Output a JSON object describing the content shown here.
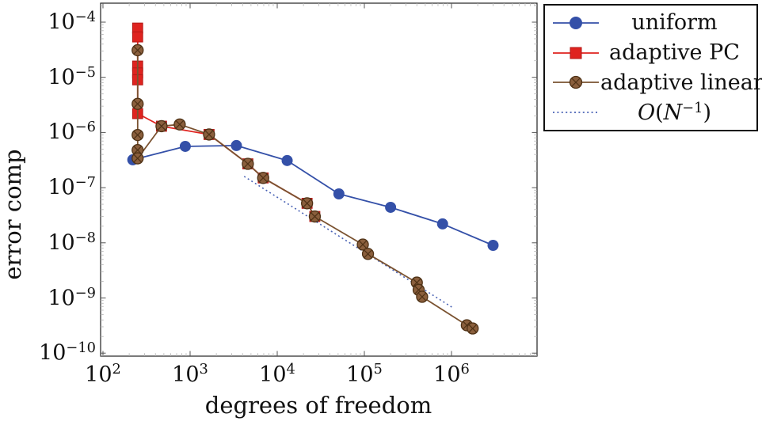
{
  "chart_data": {
    "type": "line",
    "title": "",
    "xlabel": "degrees of freedom",
    "ylabel": "error comp",
    "xscale": "log",
    "yscale": "log",
    "xlim": [
      93,
      9600000
    ],
    "ylim": [
      8.8e-11,
      0.00022
    ],
    "x_tick_exponents": [
      2,
      3,
      4,
      5,
      6
    ],
    "y_tick_exponents": [
      -4,
      -5,
      -6,
      -7,
      -8,
      -9,
      -10
    ],
    "tick_mantissa": "10",
    "grid": false,
    "legend_position": "outside top-right",
    "series": [
      {
        "name": "uniform",
        "marker": "circle",
        "color": "#3450a8",
        "points": [
          [
            220,
            3.2e-07
          ],
          [
            880,
            5.6e-07
          ],
          [
            3400,
            5.8e-07
          ],
          [
            13000,
            3.1e-07
          ],
          [
            51000,
            7.7e-08
          ],
          [
            200000,
            4.4e-08
          ],
          [
            790000,
            2.2e-08
          ],
          [
            3000000,
            9e-09
          ]
        ]
      },
      {
        "name": "adaptive PC",
        "marker": "square",
        "color": "#df231f",
        "points": [
          [
            250,
            7.8e-05
          ],
          [
            250,
            5.4e-05
          ],
          [
            250,
            1.6e-05
          ],
          [
            250,
            1.2e-05
          ],
          [
            250,
            9e-06
          ],
          [
            250,
            2.2e-06
          ],
          [
            470,
            1.3e-06
          ],
          [
            1650,
            9.2e-07
          ],
          [
            4600,
            2.7e-07
          ],
          [
            6900,
            1.5e-07
          ],
          [
            22000,
            5.2e-08
          ],
          [
            27000,
            3e-08
          ]
        ]
      },
      {
        "name": "adaptive linear",
        "marker": "crossed-circle",
        "color": "#7a5230",
        "points": [
          [
            250,
            3.1e-05
          ],
          [
            250,
            3.3e-06
          ],
          [
            250,
            9e-07
          ],
          [
            250,
            4.8e-07
          ],
          [
            250,
            3.4e-07
          ],
          [
            470,
            1.3e-06
          ],
          [
            760,
            1.4e-06
          ],
          [
            1650,
            9.2e-07
          ],
          [
            4600,
            2.7e-07
          ],
          [
            6900,
            1.5e-07
          ],
          [
            22000,
            5.2e-08
          ],
          [
            27000,
            3e-08
          ],
          [
            96000,
            9.3e-09
          ],
          [
            110000,
            6.3e-09
          ],
          [
            400000,
            1.9e-09
          ],
          [
            420000,
            1.4e-09
          ],
          [
            460000,
            1.05e-09
          ],
          [
            1500000,
            3.2e-10
          ],
          [
            1750000,
            2.8e-10
          ]
        ]
      }
    ],
    "reference_line": {
      "name": "O(N^-1)",
      "style": "dotted",
      "color": "#4a63b5",
      "points": [
        [
          4170,
          1.6e-07
        ],
        [
          1060000,
          6.5e-10
        ]
      ]
    }
  },
  "legend": {
    "items": [
      {
        "label": "uniform",
        "marker": "circle",
        "color": "#3450a8"
      },
      {
        "label": "adaptive PC",
        "marker": "square",
        "color": "#df231f"
      },
      {
        "label": "adaptive linear",
        "marker": "crossed-circle",
        "color": "#7a5230"
      },
      {
        "marker": "dotted-line",
        "color": "#4a63b5",
        "math": {
          "sym": "O",
          "open": "(",
          "var": "N",
          "sup": "−1",
          "close": ")"
        }
      }
    ]
  }
}
